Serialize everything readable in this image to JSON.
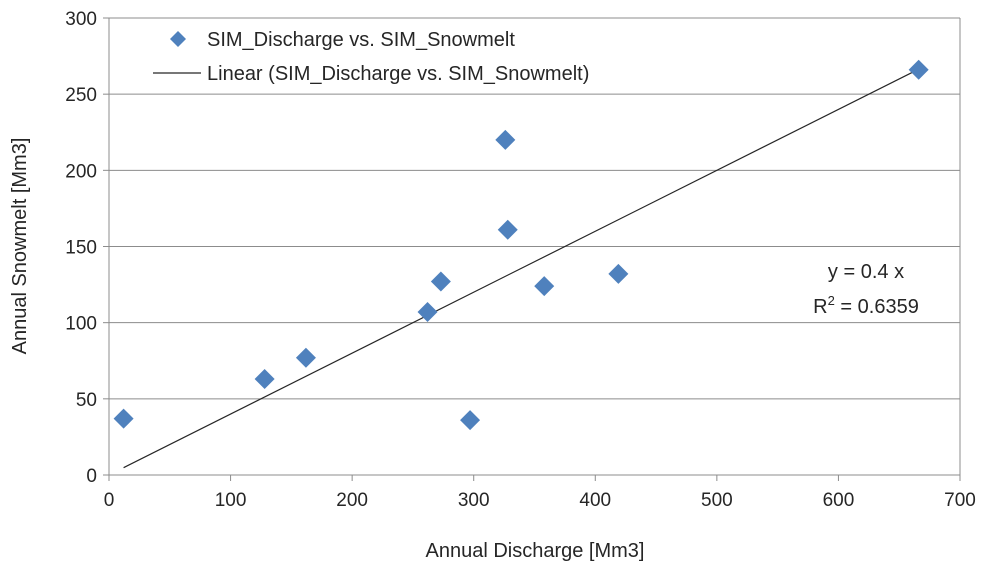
{
  "chart_data": {
    "type": "scatter",
    "xlabel": "Annual Discharge [Mm3]",
    "ylabel": "Annual Snowmelt [Mm3]",
    "xlim": [
      0,
      700
    ],
    "ylim": [
      0,
      300
    ],
    "xticks": [
      0,
      100,
      200,
      300,
      400,
      500,
      600,
      700
    ],
    "yticks": [
      0,
      50,
      100,
      150,
      200,
      250,
      300
    ],
    "grid": "horizontal",
    "legend_placement": "top-left",
    "series": [
      {
        "name": "SIM_Discharge vs. SIM_Snowmelt",
        "marker": "diamond",
        "color": "#4F81BD",
        "x": [
          12,
          128,
          162,
          262,
          273,
          297,
          326,
          328,
          358,
          419,
          666
        ],
        "y": [
          37,
          63,
          77,
          107,
          127,
          36,
          220,
          161,
          124,
          132,
          266
        ]
      }
    ],
    "trendline": {
      "name": "Linear (SIM_Discharge vs. SIM_Snowmelt)",
      "color": "#262626",
      "slope": 0.4,
      "x_range": [
        12,
        666
      ]
    },
    "annotation": {
      "equation": "y = 0.4 x",
      "r2_label": "R",
      "r2_superscript": "2",
      "r2_value": " = 0.6359"
    }
  }
}
